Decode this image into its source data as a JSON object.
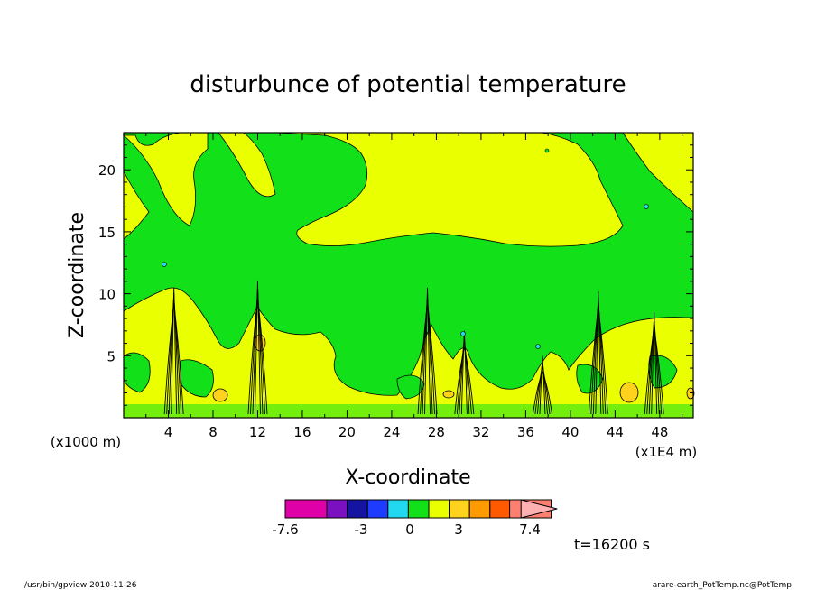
{
  "chart_data": {
    "type": "heatmap",
    "title": "disturbunce of potential temperature",
    "xlabel": "X-coordinate",
    "ylabel": "Z-coordinate",
    "x_unit_left": "(x1000 m)",
    "x_unit_right": "(x1E4 m)",
    "xlim": [
      0,
      51
    ],
    "ylim": [
      0,
      23
    ],
    "x_ticks": [
      "4",
      "8",
      "12",
      "16",
      "20",
      "24",
      "28",
      "32",
      "36",
      "40",
      "44",
      "48"
    ],
    "y_ticks": [
      "5",
      "10",
      "15",
      "20"
    ],
    "colorbar": {
      "ticks": [
        "-7.6",
        "-3",
        "0",
        "3",
        "7.4"
      ],
      "colors": [
        "#e000a8",
        "#7a10c0",
        "#1414a0",
        "#1e3cff",
        "#22d8f0",
        "#12e018",
        "#eaff00",
        "#ffd21e",
        "#ff9a00",
        "#ff5a00",
        "#f01414",
        "#ff8070",
        "#ffb0b0"
      ]
    },
    "time_label": "t=16200 s",
    "background_color": "#12e018",
    "warm_band_color": "#eaff00"
  },
  "footer": {
    "left": "/usr/bin/gpview   2010-11-26",
    "right": "arare-earth_PotTemp.nc@PotTemp"
  }
}
